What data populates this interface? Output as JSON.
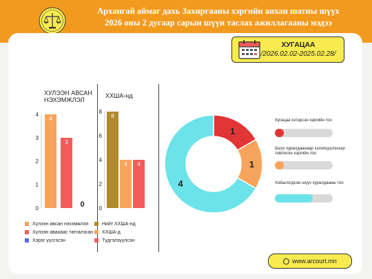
{
  "header": {
    "title_line1": "Архангай аймаг дахь Захиргааны хэргийн анхан шатны шүүх",
    "title_line2": "2026 оны 2 дугаар сарын шүүн таслах ажиллагааны мэдээ",
    "logo_icon": "scales-of-justice-icon"
  },
  "period": {
    "label": "ХУГАЦАА",
    "range": "/2026.02.02-2025.02.28/",
    "icon": "calendar-icon"
  },
  "website": {
    "text": "www.arcourt.mn",
    "icon": "globe-icon"
  },
  "colors": {
    "orange": "#f6a45c",
    "red": "#f35b5b",
    "blue": "#5b6bf0",
    "olive": "#b08a2b",
    "cyan": "#6ce3e8",
    "darkred": "#e23636",
    "header": "#f29a1e",
    "yellow": "#f7eb4f"
  },
  "chart_data": [
    {
      "type": "bar",
      "title": "ХУЛЭЭН АВСАН НЭХЭМЖЛЭЛ",
      "ylim": [
        0,
        4
      ],
      "yticks": [
        "0",
        "1",
        "2",
        "3",
        "4"
      ],
      "series": [
        {
          "name": "Хүлээн авсан нэхэмжлэл",
          "values": [
            4
          ],
          "color": "#f6a45c"
        },
        {
          "name": "Хүлээн авахаас татгалзсан",
          "values": [
            3
          ],
          "color": "#f35b5b"
        },
        {
          "name": "Хэрэг үүсгэсэн",
          "values": [
            0
          ],
          "color": "#5b6bf0"
        }
      ],
      "data_labels": [
        "4",
        "3",
        "0"
      ]
    },
    {
      "type": "bar",
      "title": "ХХША-нд",
      "ylim": [
        0,
        8
      ],
      "yticks": [
        "0",
        "2",
        "4",
        "6",
        "8"
      ],
      "series": [
        {
          "name": "Нийт ХХША-нд",
          "values": [
            8
          ],
          "color": "#b08a2b"
        },
        {
          "name": "ХХША-д",
          "values": [
            4
          ],
          "color": "#f6a45c"
        },
        {
          "name": "Түдгэлзүүлсэн",
          "values": [
            4
          ],
          "color": "#f35b5b"
        }
      ],
      "data_labels": [
        "8",
        "4",
        "4"
      ]
    },
    {
      "type": "pie",
      "donut": true,
      "slices": [
        {
          "label": "Хугацаа хэтэрсэн хэргийн тоо",
          "value": 1,
          "color": "#e23636"
        },
        {
          "label": "Шүүх хуралдаанаар хэлэлцүүлэхээр товлосон хэргийн тоо",
          "value": 1,
          "color": "#f6a45c"
        },
        {
          "label": "Хойшлогдсон шүүх хуралдааны тоо",
          "value": 4,
          "color": "#6ce3e8"
        }
      ],
      "pill_fraction": [
        0.15,
        0.15,
        0.65
      ]
    }
  ]
}
